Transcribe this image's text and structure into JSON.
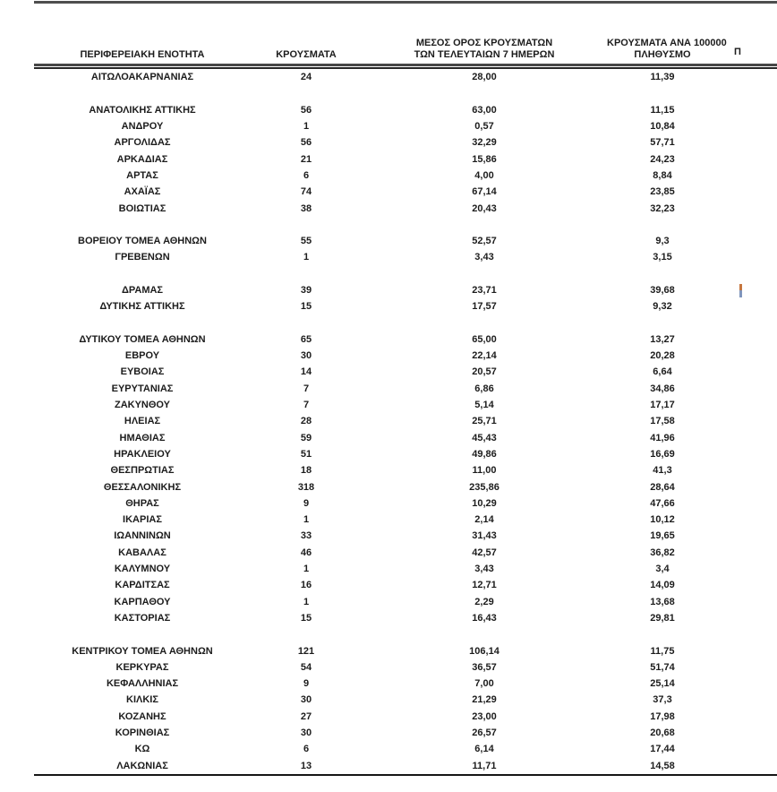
{
  "table": {
    "headers": {
      "region": "ΠΕΡΙΦΕΡΕΙΑΚΗ ΕΝΟΤΗΤΑ",
      "cases": "ΚΡΟΥΣΜΑΤΑ",
      "avg7_line1": "ΜΕΣΟΣ ΟΡΟΣ ΚΡΟΥΣΜΑΤΩΝ",
      "avg7_line2": "ΤΩΝ ΤΕΛΕΥΤΑΙΩΝ 7 ΗΜΕΡΩΝ",
      "per100k_line1": "ΚΡΟΥΣΜΑΤΑ ΑΝΑ 100000",
      "per100k_line2": "ΠΛΗΘΥΣΜΟ",
      "next_column_partial": "Π"
    },
    "rows": [
      {
        "region": "ΑΙΤΩΛΟΑΚΑΡΝΑΝΙΑΣ",
        "cases": "24",
        "avg7": "28,00",
        "per100k": "11,39"
      },
      null,
      {
        "region": "ΑΝΑΤΟΛΙΚΗΣ ΑΤΤΙΚΗΣ",
        "cases": "56",
        "avg7": "63,00",
        "per100k": "11,15"
      },
      {
        "region": "ΑΝΔΡΟΥ",
        "cases": "1",
        "avg7": "0,57",
        "per100k": "10,84"
      },
      {
        "region": "ΑΡΓΟΛΙΔΑΣ",
        "cases": "56",
        "avg7": "32,29",
        "per100k": "57,71"
      },
      {
        "region": "ΑΡΚΑΔΙΑΣ",
        "cases": "21",
        "avg7": "15,86",
        "per100k": "24,23"
      },
      {
        "region": "ΑΡΤΑΣ",
        "cases": "6",
        "avg7": "4,00",
        "per100k": "8,84"
      },
      {
        "region": "ΑΧΑΪΑΣ",
        "cases": "74",
        "avg7": "67,14",
        "per100k": "23,85"
      },
      {
        "region": "ΒΟΙΩΤΙΑΣ",
        "cases": "38",
        "avg7": "20,43",
        "per100k": "32,23"
      },
      null,
      {
        "region": "ΒΟΡΕΙΟΥ ΤΟΜΕΑ ΑΘΗΝΩΝ",
        "cases": "55",
        "avg7": "52,57",
        "per100k": "9,3"
      },
      {
        "region": "ΓΡΕΒΕΝΩΝ",
        "cases": "1",
        "avg7": "3,43",
        "per100k": "3,15"
      },
      null,
      {
        "region": "ΔΡΑΜΑΣ",
        "cases": "39",
        "avg7": "23,71",
        "per100k": "39,68",
        "edge_fragment": true
      },
      {
        "region": "ΔΥΤΙΚΗΣ ΑΤΤΙΚΗΣ",
        "cases": "15",
        "avg7": "17,57",
        "per100k": "9,32"
      },
      null,
      {
        "region": "ΔΥΤΙΚΟΥ ΤΟΜΕΑ ΑΘΗΝΩΝ",
        "cases": "65",
        "avg7": "65,00",
        "per100k": "13,27"
      },
      {
        "region": "ΕΒΡΟΥ",
        "cases": "30",
        "avg7": "22,14",
        "per100k": "20,28"
      },
      {
        "region": "ΕΥΒΟΙΑΣ",
        "cases": "14",
        "avg7": "20,57",
        "per100k": "6,64"
      },
      {
        "region": "ΕΥΡΥΤΑΝΙΑΣ",
        "cases": "7",
        "avg7": "6,86",
        "per100k": "34,86"
      },
      {
        "region": "ΖΑΚΥΝΘΟΥ",
        "cases": "7",
        "avg7": "5,14",
        "per100k": "17,17"
      },
      {
        "region": "ΗΛΕΙΑΣ",
        "cases": "28",
        "avg7": "25,71",
        "per100k": "17,58"
      },
      {
        "region": "ΗΜΑΘΙΑΣ",
        "cases": "59",
        "avg7": "45,43",
        "per100k": "41,96"
      },
      {
        "region": "ΗΡΑΚΛΕΙΟΥ",
        "cases": "51",
        "avg7": "49,86",
        "per100k": "16,69"
      },
      {
        "region": "ΘΕΣΠΡΩΤΙΑΣ",
        "cases": "18",
        "avg7": "11,00",
        "per100k": "41,3"
      },
      {
        "region": "ΘΕΣΣΑΛΟΝΙΚΗΣ",
        "cases": "318",
        "avg7": "235,86",
        "per100k": "28,64"
      },
      {
        "region": "ΘΗΡΑΣ",
        "cases": "9",
        "avg7": "10,29",
        "per100k": "47,66"
      },
      {
        "region": "ΙΚΑΡΙΑΣ",
        "cases": "1",
        "avg7": "2,14",
        "per100k": "10,12"
      },
      {
        "region": "ΙΩΑΝΝΙΝΩΝ",
        "cases": "33",
        "avg7": "31,43",
        "per100k": "19,65"
      },
      {
        "region": "ΚΑΒΑΛΑΣ",
        "cases": "46",
        "avg7": "42,57",
        "per100k": "36,82"
      },
      {
        "region": "ΚΑΛΥΜΝΟΥ",
        "cases": "1",
        "avg7": "3,43",
        "per100k": "3,4"
      },
      {
        "region": "ΚΑΡΔΙΤΣΑΣ",
        "cases": "16",
        "avg7": "12,71",
        "per100k": "14,09"
      },
      {
        "region": "ΚΑΡΠΑΘΟΥ",
        "cases": "1",
        "avg7": "2,29",
        "per100k": "13,68"
      },
      {
        "region": "ΚΑΣΤΟΡΙΑΣ",
        "cases": "15",
        "avg7": "16,43",
        "per100k": "29,81"
      },
      null,
      {
        "region": "ΚΕΝΤΡΙΚΟΥ ΤΟΜΕΑ ΑΘΗΝΩΝ",
        "cases": "121",
        "avg7": "106,14",
        "per100k": "11,75"
      },
      {
        "region": "ΚΕΡΚΥΡΑΣ",
        "cases": "54",
        "avg7": "36,57",
        "per100k": "51,74"
      },
      {
        "region": "ΚΕΦΑΛΛΗΝΙΑΣ",
        "cases": "9",
        "avg7": "7,00",
        "per100k": "25,14"
      },
      {
        "region": "ΚΙΛΚΙΣ",
        "cases": "30",
        "avg7": "21,29",
        "per100k": "37,3"
      },
      {
        "region": "ΚΟΖΑΝΗΣ",
        "cases": "27",
        "avg7": "23,00",
        "per100k": "17,98"
      },
      {
        "region": "ΚΟΡΙΝΘΙΑΣ",
        "cases": "30",
        "avg7": "26,57",
        "per100k": "20,68"
      },
      {
        "region": "ΚΩ",
        "cases": "6",
        "avg7": "6,14",
        "per100k": "17,44"
      },
      {
        "region": "ΛΑΚΩΝΙΑΣ",
        "cases": "13",
        "avg7": "11,71",
        "per100k": "14,58"
      }
    ]
  },
  "edge_fragment_colors": {
    "top": "#c6763f",
    "bottom": "#8096bd"
  },
  "rule_colors": {
    "top": "#4e4e4e",
    "header": "#474747",
    "bottom": "#161616"
  }
}
